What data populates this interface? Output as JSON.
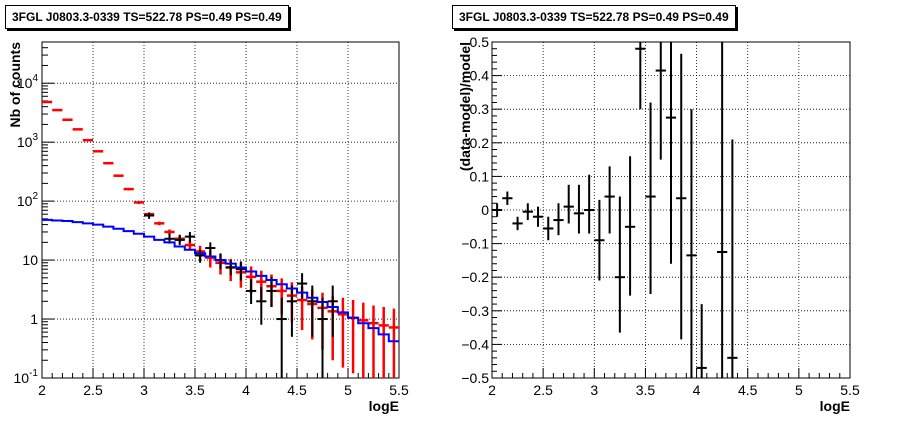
{
  "colors": {
    "data": "#000000",
    "model": "#0000ff",
    "model_stat": "#ff0000",
    "axis": "#000000",
    "grid": "#000000"
  },
  "chart_data": [
    {
      "type": "line",
      "title": "3FGL J0803.3-0339 TS=522.78 PS=0.49 PS=0.49",
      "xlabel": "logE",
      "ylabel": "Nb of counts",
      "xlim": [
        2,
        5.5
      ],
      "ylim": [
        0.1,
        50000
      ],
      "yscale": "log",
      "grid": true,
      "xticks": [
        "2",
        "2.5",
        "3",
        "3.5",
        "4",
        "4.5",
        "5",
        "5.5"
      ],
      "yticks": [
        "10^{-1}",
        "1",
        "10",
        "10^{2}",
        "10^{3}",
        "10^{4}"
      ],
      "series": [
        {
          "kind": "points",
          "color": "#ff0000",
          "x": [
            2.05,
            2.15,
            2.25,
            2.35,
            2.45,
            2.55,
            2.65,
            2.75,
            2.85,
            2.95,
            3.05,
            3.15,
            3.25,
            3.35,
            3.45,
            3.55,
            3.65,
            3.75,
            3.85,
            3.95,
            4.05,
            4.15,
            4.25,
            4.35,
            4.45,
            4.55,
            4.65,
            4.75,
            4.85,
            4.95,
            5.05,
            5.15,
            5.25,
            5.35,
            5.45
          ],
          "y": [
            4800,
            3500,
            2400,
            1650,
            1080,
            700,
            440,
            270,
            160,
            95,
            60,
            42,
            30,
            23,
            18,
            14,
            11,
            9,
            7.5,
            6.2,
            5.2,
            4.3,
            3.6,
            3.0,
            2.5,
            2.1,
            1.8,
            1.55,
            1.35,
            1.2,
            1.05,
            0.95,
            0.85,
            0.78,
            0.72
          ],
          "lo": [
            4650,
            3380,
            2330,
            1600,
            1050,
            680,
            420,
            258,
            152,
            89,
            56,
            39,
            27,
            20,
            14.5,
            10.5,
            7.5,
            5.7,
            4.4,
            3.4,
            2.7,
            2.1,
            1.6,
            1.2,
            0.9,
            0.65,
            0.45,
            0.3,
            0.2,
            0.15,
            0.12,
            0.1,
            0.1,
            0.1,
            0.1
          ],
          "hi": [
            4950,
            3620,
            2470,
            1700,
            1110,
            720,
            460,
            282,
            168,
            101,
            64,
            45,
            33,
            26,
            21.5,
            17.5,
            14.5,
            12.5,
            10.5,
            9.0,
            7.8,
            6.6,
            5.7,
            4.9,
            4.2,
            3.6,
            3.2,
            2.8,
            2.5,
            2.3,
            2.1,
            1.9,
            1.7,
            1.6,
            1.5
          ]
        },
        {
          "kind": "points",
          "color": "#000000",
          "x": [
            3.05,
            3.25,
            3.35,
            3.45,
            3.55,
            3.65,
            3.75,
            3.85,
            3.95,
            4.05,
            4.15,
            4.25,
            4.35,
            4.45,
            4.55,
            4.65,
            4.75,
            4.85
          ],
          "y": [
            57,
            23,
            22,
            25,
            12,
            16,
            10,
            7.5,
            7,
            3,
            2,
            3,
            1,
            2,
            4,
            2,
            1,
            2
          ],
          "lo": [
            50,
            19,
            18,
            20,
            9,
            12,
            7,
            5.5,
            4.5,
            1.8,
            0.8,
            1.6,
            0.1,
            0.5,
            2.2,
            0.5,
            0.1,
            0.5
          ],
          "hi": [
            64,
            28,
            27,
            30,
            15,
            20,
            13,
            10,
            9.5,
            4.7,
            3.5,
            5.2,
            2.3,
            3.7,
            6,
            3.7,
            2.3,
            3.7
          ]
        },
        {
          "kind": "step",
          "color": "#0000ff",
          "x": [
            2.0,
            2.1,
            2.2,
            2.3,
            2.4,
            2.5,
            2.6,
            2.7,
            2.8,
            2.9,
            3.0,
            3.1,
            3.2,
            3.3,
            3.4,
            3.5,
            3.6,
            3.7,
            3.8,
            3.9,
            4.0,
            4.1,
            4.2,
            4.3,
            4.4,
            4.5,
            4.6,
            4.7,
            4.8,
            4.9,
            5.0,
            5.1,
            5.2,
            5.3,
            5.4,
            5.5
          ],
          "y": [
            48,
            47,
            46,
            44,
            42,
            40,
            37,
            34,
            31,
            28,
            25,
            22,
            20,
            17,
            15,
            13,
            11.5,
            10,
            8.7,
            7.5,
            6.4,
            5.4,
            4.6,
            3.9,
            3.3,
            2.8,
            2.3,
            1.95,
            1.6,
            1.3,
            1.05,
            0.85,
            0.7,
            0.55,
            0.42,
            0.3
          ]
        }
      ]
    },
    {
      "type": "scatter",
      "title": "3FGL J0803.3-0339 TS=522.78 PS=0.49 PS=0.49",
      "xlabel": "logE",
      "ylabel": "(data-model)/model",
      "xlim": [
        2,
        5.5
      ],
      "ylim": [
        -0.5,
        0.5
      ],
      "grid": true,
      "xticks": [
        "2",
        "2.5",
        "3",
        "3.5",
        "4",
        "4.5",
        "5",
        "5.5"
      ],
      "yticks": [
        "−0.5",
        "−0.4",
        "−0.3",
        "−0.2",
        "−0.1",
        "0",
        "0.1",
        "0.2",
        "0.3",
        "0.4",
        "0.5"
      ],
      "series": [
        {
          "kind": "points",
          "color": "#000000",
          "x": [
            2.05,
            2.15,
            2.25,
            2.35,
            2.45,
            2.55,
            2.65,
            2.75,
            2.85,
            2.95,
            3.05,
            3.15,
            3.25,
            3.35,
            3.45,
            3.55,
            3.65,
            3.75,
            3.85,
            3.95,
            4.05,
            4.25,
            4.35
          ],
          "y": [
            0.0,
            0.035,
            -0.04,
            -0.005,
            -0.02,
            -0.055,
            -0.03,
            0.01,
            -0.01,
            0.0,
            -0.09,
            0.04,
            -0.2,
            -0.05,
            0.48,
            0.04,
            0.415,
            0.275,
            0.035,
            -0.135,
            -0.47,
            -0.125,
            -0.44
          ],
          "lo": [
            -0.02,
            0.015,
            -0.06,
            -0.03,
            -0.05,
            -0.09,
            -0.075,
            -0.04,
            -0.07,
            -0.07,
            -0.21,
            -0.07,
            -0.365,
            -0.255,
            0.3,
            -0.25,
            0.15,
            -0.16,
            -0.385,
            -0.6,
            -0.6,
            -0.55,
            -0.6
          ],
          "hi": [
            0.02,
            0.055,
            -0.02,
            0.02,
            0.01,
            -0.02,
            0.02,
            0.075,
            0.075,
            0.105,
            0.03,
            0.13,
            0.04,
            0.16,
            0.6,
            0.32,
            0.6,
            0.6,
            0.465,
            0.3,
            -0.28,
            0.6,
            0.21
          ]
        }
      ]
    }
  ]
}
